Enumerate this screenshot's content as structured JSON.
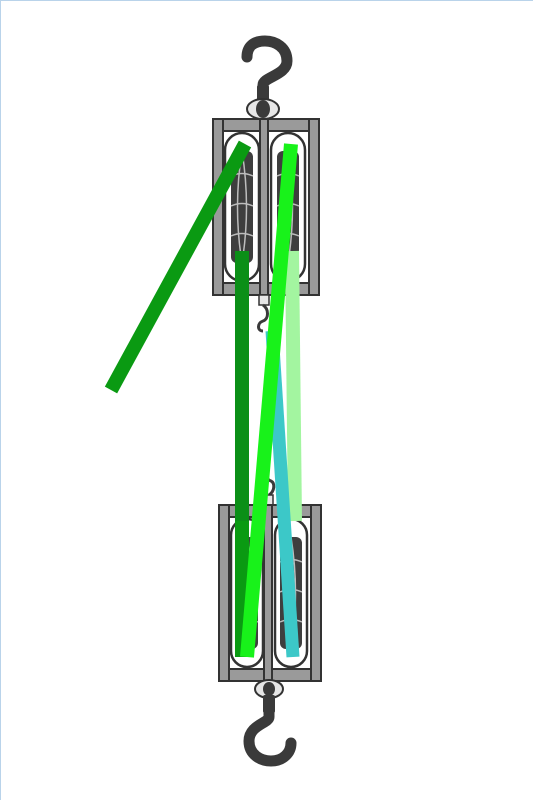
{
  "diagram": {
    "kind": "block-and-tackle",
    "upper_block": {
      "sheaves": 2
    },
    "lower_block": {
      "sheaves": 2
    },
    "hooks": 2,
    "rope_segments": 5
  },
  "colors": {
    "hook": "#3a3a3a",
    "frame_fill": "#9a9a9a",
    "frame_stroke": "#333333",
    "pulley_fill": "#ffffff",
    "sheave_dark": "#3e3e3e",
    "rope_dark_green": "#0a9a12",
    "rope_green": "#0b8f17",
    "rope_bright_green": "#18f21a",
    "rope_light_green": "#a3f5a0",
    "rope_cyan": "#3cc8c8"
  }
}
